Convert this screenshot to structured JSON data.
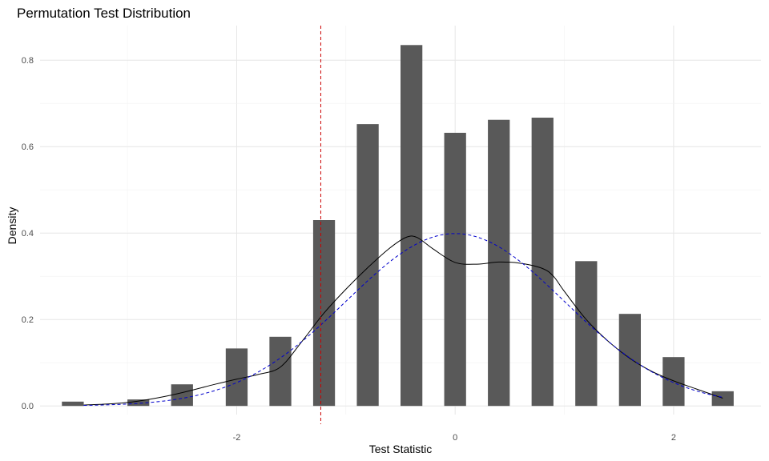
{
  "chart_data": {
    "type": "bar",
    "title": "Permutation Test Distribution",
    "xlabel": "Test Statistic",
    "ylabel": "Density",
    "xlim": [
      -3.8,
      2.8
    ],
    "ylim": [
      -0.02,
      0.88
    ],
    "x_ticks": [
      -2,
      0,
      2
    ],
    "x_tick_labels": [
      "-2",
      "0",
      "2"
    ],
    "y_ticks": [
      0,
      0.2,
      0.4,
      0.6,
      0.8
    ],
    "y_tick_labels": [
      "0.0",
      "0.2",
      "0.4",
      "0.6",
      "0.8"
    ],
    "grid": true,
    "bar_color": "#595959",
    "bar_width": 0.2,
    "bars": {
      "x": [
        -3.5,
        -2.9,
        -2.5,
        -2.0,
        -1.6,
        -1.2,
        -0.8,
        -0.4,
        0.0,
        0.4,
        0.8,
        1.2,
        1.6,
        2.0,
        2.45
      ],
      "values": [
        0.01,
        0.015,
        0.05,
        0.133,
        0.16,
        0.43,
        0.652,
        0.835,
        0.632,
        0.662,
        0.667,
        0.335,
        0.213,
        0.113,
        0.034
      ]
    },
    "lines": [
      {
        "kind": "kernel density",
        "color": "#000000",
        "dash": "solid",
        "x": [
          -3.4,
          -3.0,
          -2.6,
          -2.2,
          -2.0,
          -1.8,
          -1.6,
          -1.4,
          -1.2,
          -1.0,
          -0.8,
          -0.6,
          -0.45,
          -0.35,
          -0.2,
          0.0,
          0.2,
          0.4,
          0.6,
          0.8,
          0.9,
          1.0,
          1.2,
          1.4,
          1.6,
          1.8,
          2.0,
          2.2,
          2.45
        ],
        "y": [
          0.002,
          0.008,
          0.025,
          0.05,
          0.062,
          0.073,
          0.09,
          0.15,
          0.215,
          0.27,
          0.32,
          0.365,
          0.39,
          0.39,
          0.363,
          0.332,
          0.328,
          0.333,
          0.33,
          0.318,
          0.3,
          0.265,
          0.2,
          0.15,
          0.11,
          0.08,
          0.058,
          0.04,
          0.018
        ]
      },
      {
        "kind": "normal",
        "color": "#0000cc",
        "dash": "dashed",
        "mean": 0.0,
        "sd": 1.0,
        "x_range": [
          -3.4,
          2.45
        ]
      }
    ],
    "vline": {
      "x": -1.23,
      "color": "#cc0000",
      "dash": "dashed"
    }
  }
}
